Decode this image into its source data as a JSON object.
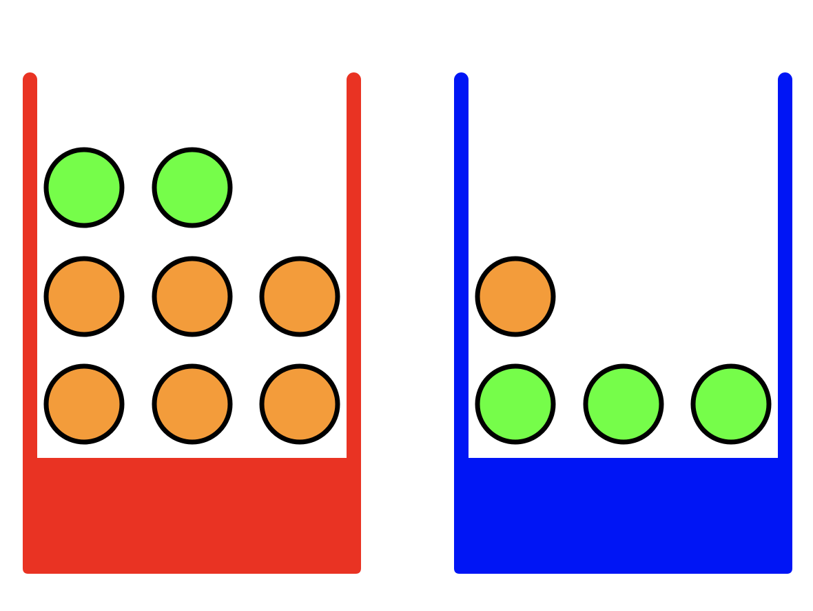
{
  "colors": {
    "background": "#ffffff",
    "ball_stroke": "#000000",
    "green": "#76fd4a",
    "orange": "#f39c3b"
  },
  "containers": [
    {
      "id": "red",
      "color": "#e93323",
      "rows": [
        [
          "green",
          "green"
        ],
        [
          "orange",
          "orange",
          "orange"
        ],
        [
          "orange",
          "orange",
          "orange"
        ]
      ]
    },
    {
      "id": "blue",
      "color": "#0015f5",
      "rows": [
        [],
        [
          "orange"
        ],
        [
          "green",
          "green",
          "green"
        ]
      ]
    }
  ]
}
